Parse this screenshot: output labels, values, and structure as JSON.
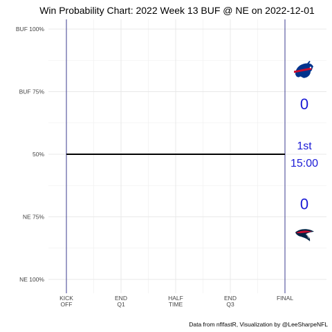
{
  "chart_data": {
    "type": "line",
    "title": "Win Probability Chart: 2022 Week 13 BUF @ NE on 2022-12-01",
    "caption": "Data from nflfastR, Visualization by @LeeSharpeNFL",
    "y_ticks": [
      {
        "value": 1.0,
        "label": "BUF 100%"
      },
      {
        "value": 0.75,
        "label": "BUF 75%"
      },
      {
        "value": 0.5,
        "label": "50%"
      },
      {
        "value": 0.25,
        "label": "NE 75%"
      },
      {
        "value": 0.0,
        "label": "NE 100%"
      }
    ],
    "ylim": [
      0,
      1
    ],
    "x_ticks": [
      {
        "value": 0,
        "line1": "KICK",
        "line2": "OFF"
      },
      {
        "value": 900,
        "line1": "END",
        "line2": "Q1"
      },
      {
        "value": 1800,
        "line1": "HALF",
        "line2": "TIME"
      },
      {
        "value": 2700,
        "line1": "END",
        "line2": "Q3"
      },
      {
        "value": 3600,
        "line1": "FINAL",
        "line2": ""
      }
    ],
    "xlim": [
      0,
      3600
    ],
    "series": [
      {
        "x": [
          0,
          3600
        ],
        "values": [
          0.5,
          0.5
        ],
        "color": "#000000"
      }
    ],
    "grid": true,
    "home_team": "NE",
    "away_team": "BUF",
    "buf_score": "0",
    "ne_score": "0",
    "quarter": "1st",
    "clock": "15:00",
    "colors": {
      "boundary_lines": "#3b3b8f",
      "score": "#1a1ad6",
      "buf_blue": "#00338D",
      "buf_red": "#C60C30",
      "ne_navy": "#002244",
      "ne_red": "#C60C30",
      "grid": "#e8e8e8"
    },
    "icons": {
      "buf": "bills-logo-icon",
      "ne": "patriots-logo-icon"
    }
  }
}
